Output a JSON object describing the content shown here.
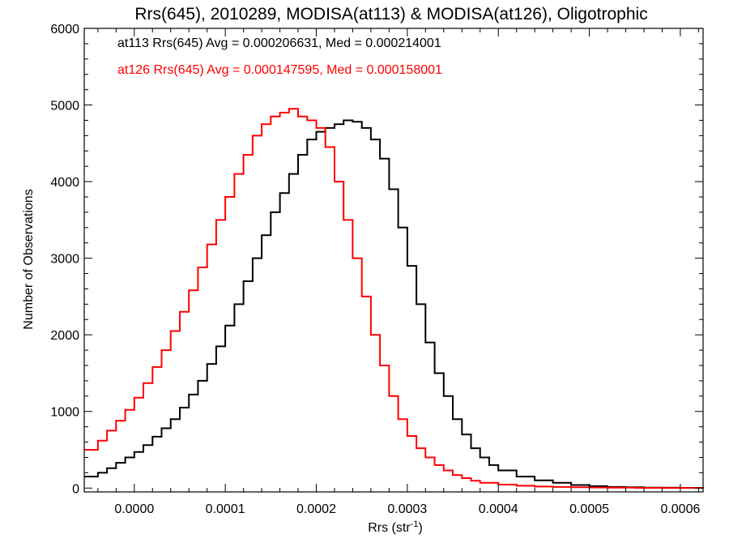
{
  "chart_data": {
    "type": "line",
    "step": true,
    "title": "Rrs(645), 2010289, MODISA(at113) & MODISA(at126), Oligotrophic",
    "xlabel": "Rrs (str",
    "xlabel_sup": "-1",
    "xlabel_close": ")",
    "ylabel": "Number of Observations",
    "xlim": [
      -5.5e-05,
      0.000625
    ],
    "ylim": [
      -50,
      6000
    ],
    "xticks": [
      0.0,
      0.0001,
      0.0002,
      0.0003,
      0.0004,
      0.0005,
      0.0006
    ],
    "xtick_labels": [
      "0.0000",
      "0.0001",
      "0.0002",
      "0.0003",
      "0.0004",
      "0.0005",
      "0.0006"
    ],
    "yticks": [
      0,
      1000,
      2000,
      3000,
      4000,
      5000,
      6000
    ],
    "ytick_labels": [
      "0",
      "1000",
      "2000",
      "3000",
      "4000",
      "5000",
      "6000"
    ],
    "annotations": [
      {
        "text": "at113 Rrs(645) Avg = 0.000206631, Med = 0.000214001",
        "color": "#000000"
      },
      {
        "text": "at126 Rrs(645) Avg = 0.000147595, Med = 0.000158001",
        "color": "#ff0000"
      }
    ],
    "series": [
      {
        "label": "at113",
        "color": "#000000",
        "x": [
          -5.5e-05,
          -4e-05,
          -3e-05,
          -2e-05,
          -1e-05,
          0.0,
          1e-05,
          2e-05,
          3e-05,
          4e-05,
          5e-05,
          6e-05,
          7e-05,
          8e-05,
          9e-05,
          0.0001,
          0.00011,
          0.00012,
          0.00013,
          0.00014,
          0.00015,
          0.00016,
          0.00017,
          0.00018,
          0.00019,
          0.0002,
          0.00021,
          0.00022,
          0.00023,
          0.00024,
          0.00025,
          0.00026,
          0.00027,
          0.00028,
          0.00029,
          0.0003,
          0.00031,
          0.00032,
          0.00033,
          0.00034,
          0.00035,
          0.00036,
          0.00037,
          0.00038,
          0.00039,
          0.0004,
          0.00042,
          0.00044,
          0.00046,
          0.00048,
          0.0005,
          0.00052,
          0.00054,
          0.00056,
          0.00058,
          0.0006,
          0.000625
        ],
        "y": [
          150,
          200,
          260,
          330,
          400,
          470,
          560,
          670,
          780,
          900,
          1050,
          1220,
          1400,
          1620,
          1850,
          2120,
          2400,
          2700,
          3000,
          3300,
          3600,
          3850,
          4100,
          4350,
          4550,
          4650,
          4700,
          4750,
          4800,
          4780,
          4700,
          4550,
          4300,
          3900,
          3400,
          2900,
          2400,
          1900,
          1500,
          1200,
          900,
          700,
          520,
          400,
          300,
          230,
          150,
          100,
          70,
          40,
          25,
          15,
          10,
          5,
          5,
          3,
          0
        ]
      },
      {
        "label": "at126",
        "color": "#ff0000",
        "x": [
          -5.5e-05,
          -4e-05,
          -3e-05,
          -2e-05,
          -1e-05,
          0.0,
          1e-05,
          2e-05,
          3e-05,
          4e-05,
          5e-05,
          6e-05,
          7e-05,
          8e-05,
          9e-05,
          0.0001,
          0.00011,
          0.00012,
          0.00013,
          0.00014,
          0.00015,
          0.00016,
          0.00017,
          0.00018,
          0.00019,
          0.0002,
          0.00021,
          0.00022,
          0.00023,
          0.00024,
          0.00025,
          0.00026,
          0.00027,
          0.00028,
          0.00029,
          0.0003,
          0.00031,
          0.00032,
          0.00033,
          0.00034,
          0.00035,
          0.00036,
          0.00037,
          0.00038,
          0.0004,
          0.00042,
          0.00044,
          0.00046,
          0.00048,
          0.0005,
          0.00052,
          0.00055,
          0.00058,
          0.000625
        ],
        "y": [
          500,
          620,
          750,
          880,
          1020,
          1180,
          1370,
          1580,
          1800,
          2050,
          2300,
          2580,
          2880,
          3180,
          3500,
          3800,
          4100,
          4350,
          4600,
          4750,
          4850,
          4900,
          4950,
          4850,
          4800,
          4700,
          4450,
          4000,
          3500,
          3000,
          2500,
          2000,
          1600,
          1200,
          900,
          680,
          520,
          400,
          300,
          230,
          170,
          130,
          95,
          70,
          45,
          30,
          20,
          15,
          10,
          7,
          5,
          3,
          2,
          0
        ]
      }
    ]
  }
}
